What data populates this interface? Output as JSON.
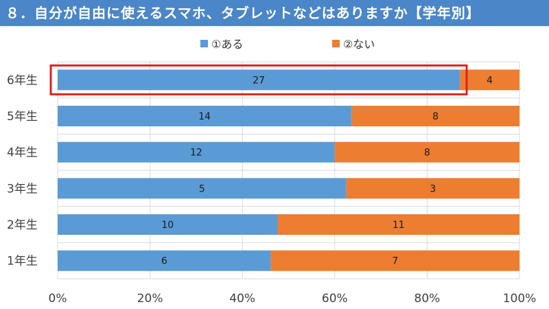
{
  "title": "８．自分が自由に使えるスマホ、タブレットなどはありますか【学年別】",
  "colors": {
    "title_bg": "#4a86c8",
    "series_1": "#5b9bd5",
    "series_2": "#ed7d31",
    "highlight": "#e02020",
    "grid": "#d9d9d9",
    "text": "#404040"
  },
  "legend": [
    {
      "label": "①ある"
    },
    {
      "label": "②ない"
    }
  ],
  "chart_data": {
    "type": "bar",
    "orientation": "horizontal",
    "stacked": "percent",
    "title": "８．自分が自由に使えるスマホ、タブレットなどはありますか【学年別】",
    "categories": [
      "6年生",
      "5年生",
      "4年生",
      "3年生",
      "2年生",
      "1年生"
    ],
    "series": [
      {
        "name": "①ある",
        "values": [
          27,
          14,
          12,
          5,
          10,
          6
        ]
      },
      {
        "name": "②ない",
        "values": [
          4,
          8,
          8,
          3,
          11,
          7
        ]
      }
    ],
    "x_ticks": [
      "0%",
      "20%",
      "40%",
      "60%",
      "80%",
      "100%"
    ],
    "xlim": [
      0,
      100
    ],
    "grid": true,
    "legend_position": "top",
    "highlighted_category": "6年生"
  }
}
